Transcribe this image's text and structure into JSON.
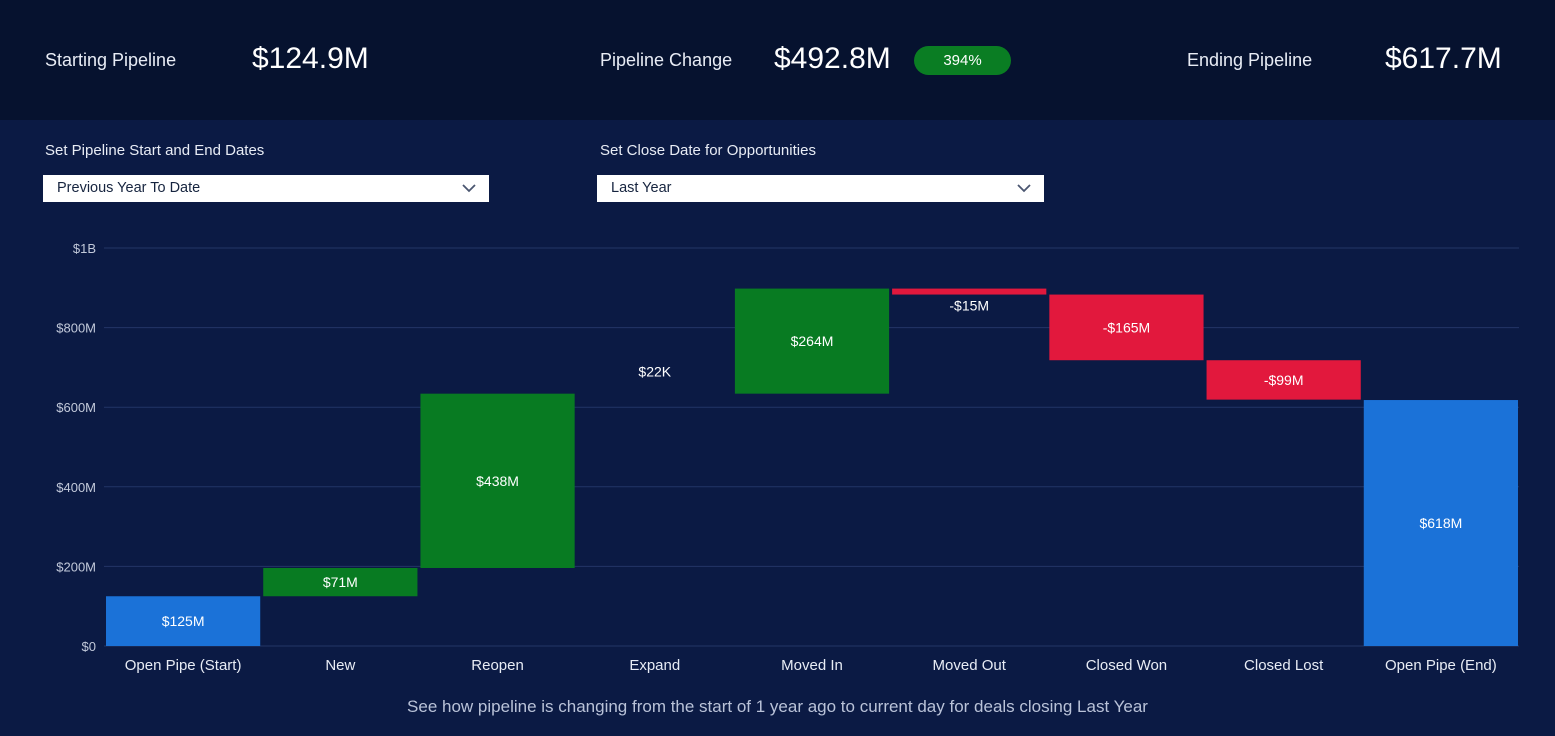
{
  "header": {
    "starting": {
      "label": "Starting Pipeline",
      "value": "$124.9M"
    },
    "change": {
      "label": "Pipeline Change",
      "value": "$492.8M",
      "badge": "394%"
    },
    "ending": {
      "label": "Ending Pipeline",
      "value": "$617.7M"
    }
  },
  "filters": {
    "dates": {
      "label": "Set Pipeline Start and End Dates",
      "value": "Previous Year To Date"
    },
    "close": {
      "label": "Set Close Date for Opportunities",
      "value": "Last Year"
    }
  },
  "footer": "See how pipeline is changing from the start of 1 year ago to current day for deals closing Last Year",
  "colors": {
    "increase": "#087b22",
    "decrease": "#e2183d",
    "total": "#1b72d8",
    "gridline": "#233566",
    "axis_text": "#c2c9da"
  },
  "chart_data": {
    "type": "bar",
    "subtype": "waterfall",
    "categories": [
      "Open Pipe (Start)",
      "New",
      "Reopen",
      "Expand",
      "Moved In",
      "Moved Out",
      "Closed Won",
      "Closed Lost",
      "Open Pipe (End)"
    ],
    "values": [
      125,
      71,
      438,
      0.022,
      264,
      -15,
      -165,
      -99,
      618
    ],
    "kinds": [
      "total",
      "increase",
      "increase",
      "increase",
      "increase",
      "decrease",
      "decrease",
      "decrease",
      "total"
    ],
    "value_labels": [
      "$125M",
      "$71M",
      "$438M",
      "$22K",
      "$264M",
      "-$15M",
      "-$165M",
      "-$99M",
      "$618M"
    ],
    "unit": "millions USD",
    "ylim": [
      0,
      1000
    ],
    "yticks": [
      0,
      200,
      400,
      600,
      800,
      1000
    ],
    "ytick_labels": [
      "$0",
      "$200M",
      "$400M",
      "$600M",
      "$800M",
      "$1B"
    ],
    "grid": true,
    "legend": "none",
    "title": "",
    "xlabel": "",
    "ylabel": ""
  }
}
